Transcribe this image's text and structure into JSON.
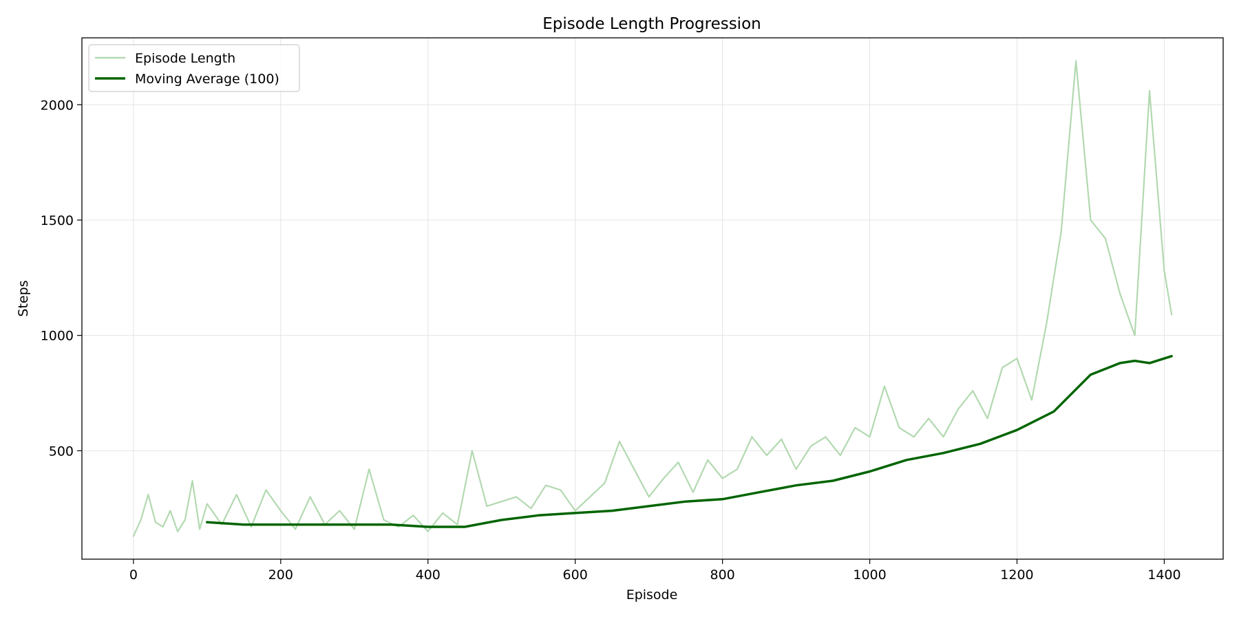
{
  "chart_data": {
    "type": "line",
    "title": "Episode Length Progression",
    "xlabel": "Episode",
    "ylabel": "Steps",
    "xlim": [
      -70,
      1480
    ],
    "ylim": [
      30,
      2290
    ],
    "xticks": [
      0,
      200,
      400,
      600,
      800,
      1000,
      1200,
      1400
    ],
    "yticks": [
      500,
      1000,
      1500,
      2000
    ],
    "grid": true,
    "legend": "top-left",
    "colors": {
      "raw": "#b2d9b0",
      "avg": "#006400",
      "grid": "#e4e4e4"
    },
    "series": [
      {
        "name": "Episode Length",
        "style": "raw",
        "x": [
          0,
          10,
          20,
          30,
          40,
          50,
          60,
          70,
          80,
          90,
          100,
          120,
          140,
          160,
          180,
          200,
          220,
          240,
          260,
          280,
          300,
          320,
          340,
          360,
          380,
          400,
          420,
          440,
          460,
          480,
          500,
          520,
          540,
          560,
          580,
          600,
          620,
          640,
          660,
          680,
          700,
          720,
          740,
          760,
          780,
          800,
          820,
          840,
          860,
          880,
          900,
          920,
          940,
          960,
          980,
          1000,
          1020,
          1040,
          1060,
          1080,
          1100,
          1120,
          1140,
          1160,
          1180,
          1200,
          1220,
          1240,
          1260,
          1280,
          1300,
          1320,
          1340,
          1360,
          1380,
          1400,
          1410
        ],
        "y": [
          130,
          200,
          310,
          190,
          170,
          240,
          150,
          200,
          370,
          160,
          270,
          180,
          310,
          170,
          330,
          240,
          160,
          300,
          180,
          240,
          160,
          420,
          200,
          170,
          220,
          150,
          230,
          180,
          500,
          260,
          280,
          300,
          250,
          350,
          330,
          240,
          300,
          360,
          540,
          420,
          300,
          380,
          450,
          320,
          460,
          380,
          420,
          560,
          480,
          550,
          420,
          520,
          560,
          480,
          600,
          560,
          780,
          600,
          560,
          640,
          560,
          680,
          760,
          640,
          860,
          900,
          720,
          1050,
          1450,
          2190,
          1500,
          1420,
          1180,
          1000,
          2060,
          1280,
          1090
        ]
      },
      {
        "name": "Moving Average (100)",
        "style": "avg",
        "x": [
          100,
          150,
          200,
          250,
          300,
          350,
          400,
          450,
          500,
          550,
          600,
          650,
          700,
          750,
          800,
          850,
          900,
          950,
          1000,
          1050,
          1100,
          1150,
          1200,
          1250,
          1300,
          1340,
          1360,
          1380,
          1410
        ],
        "y": [
          190,
          180,
          180,
          180,
          180,
          180,
          170,
          170,
          200,
          220,
          230,
          240,
          260,
          280,
          290,
          320,
          350,
          370,
          410,
          460,
          490,
          530,
          590,
          670,
          830,
          880,
          890,
          880,
          910
        ]
      }
    ]
  }
}
